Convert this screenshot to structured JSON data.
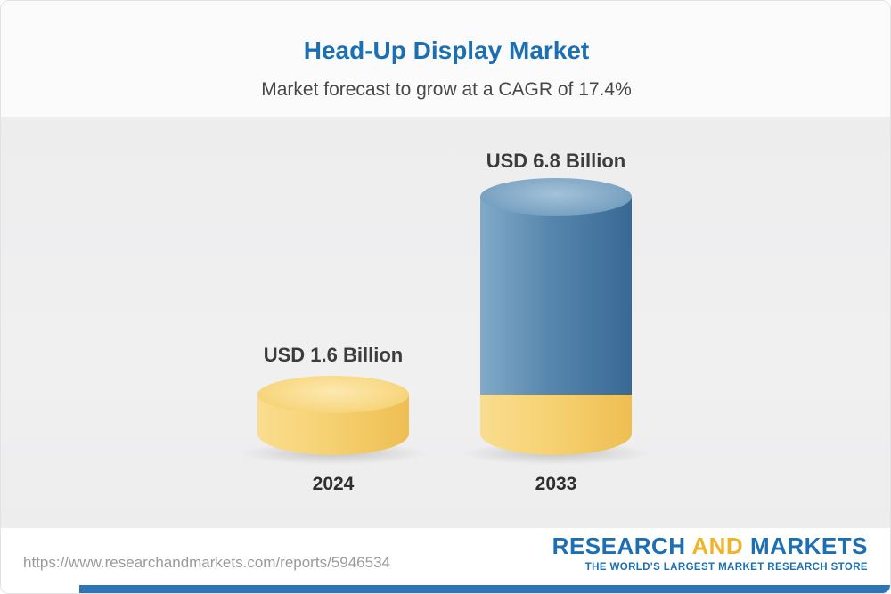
{
  "header": {
    "title": "Head-Up Display Market",
    "subtitle": "Market forecast to grow at a CAGR of 17.4%"
  },
  "chart_data": {
    "type": "bar",
    "title": "Head-Up Display Market",
    "subtitle": "Market forecast to grow at a CAGR of 17.4%",
    "cagr_percent": 17.4,
    "unit": "USD Billion",
    "categories": [
      "2024",
      "2033"
    ],
    "values": [
      1.6,
      6.8
    ],
    "value_labels": [
      "USD 1.6 Billion",
      "USD 6.8 Billion"
    ],
    "ylim": [
      0,
      6.8
    ],
    "grid": false,
    "legend": false,
    "style_note": "3D cylinder bars; 2033 bar is blue with a yellow base segment equal to the 2024 value",
    "colors": {
      "bar_2024": "#f6d273",
      "bar_2033": "#5787ae",
      "bar_2033_base_segment": "#f6d273",
      "title_text": "#1c6fb2",
      "label_text": "#3c3c3c"
    }
  },
  "footer": {
    "url": "https://www.researchandmarkets.com/reports/5946534",
    "logo": {
      "research": "RESEARCH",
      "and": "AND",
      "markets": "MARKETS",
      "tagline": "THE WORLD'S LARGEST MARKET RESEARCH STORE"
    },
    "accent_colors": {
      "blue": "#1c6fb2",
      "gold": "#f0b32a",
      "stripe": "#2e75b6"
    }
  }
}
